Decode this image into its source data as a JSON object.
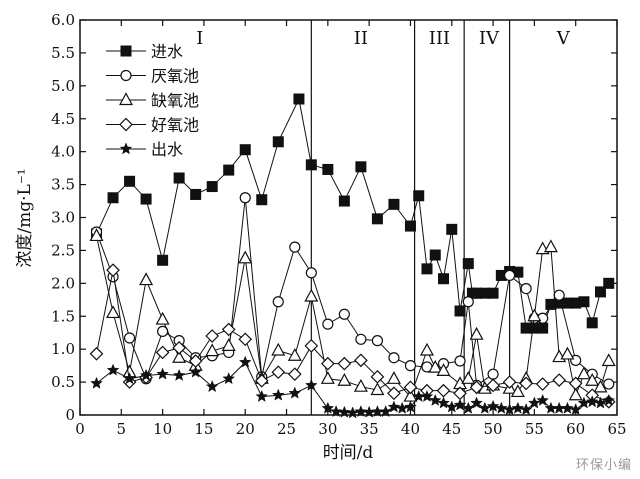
{
  "chart_data": {
    "type": "line",
    "xlabel": "时间/d",
    "ylabel": "浓度/mg·L⁻¹",
    "xlim": [
      0,
      65
    ],
    "ylim": [
      0,
      6.0
    ],
    "xticks": [
      0,
      5,
      10,
      15,
      20,
      25,
      30,
      35,
      40,
      45,
      50,
      55,
      60,
      65
    ],
    "yticks": [
      "0",
      "0.5",
      "1.0",
      "1.5",
      "2.0",
      "2.5",
      "3.0",
      "3.5",
      "4.0",
      "4.5",
      "5.0",
      "5.5",
      "6.0"
    ],
    "grid": false,
    "legend_position": "top-left",
    "phases": {
      "boundaries": [
        28,
        40.5,
        46.5,
        52
      ],
      "labels": [
        "I",
        "II",
        "III",
        "IV",
        "V"
      ],
      "label_x": [
        14.5,
        34,
        43.5,
        49.5,
        58.5
      ]
    },
    "series": [
      {
        "name": "进水",
        "marker": "square-filled",
        "x": [
          2,
          4,
          6,
          8,
          10,
          12,
          14,
          16,
          18,
          20,
          22,
          24,
          26.5,
          28,
          30,
          32,
          34,
          36,
          38,
          40,
          41,
          42,
          43,
          44,
          45,
          46,
          47,
          47.5,
          48,
          49,
          50,
          51,
          52,
          53,
          54,
          55,
          56,
          57,
          58,
          59,
          60,
          61,
          62,
          63,
          64
        ],
        "y": [
          2.75,
          3.3,
          3.55,
          3.28,
          2.35,
          3.6,
          3.35,
          3.47,
          3.72,
          4.03,
          3.27,
          4.15,
          4.8,
          3.8,
          3.73,
          3.25,
          3.77,
          2.98,
          3.2,
          2.87,
          3.33,
          2.22,
          2.43,
          2.07,
          2.82,
          1.58,
          2.3,
          1.85,
          1.85,
          1.85,
          1.85,
          2.12,
          2.18,
          2.17,
          1.32,
          1.32,
          1.32,
          1.68,
          1.7,
          1.7,
          1.7,
          1.72,
          1.4,
          1.87,
          2.0
        ]
      },
      {
        "name": "厌氧池",
        "marker": "circle-open",
        "x": [
          2,
          4,
          6,
          8,
          10,
          12,
          14,
          16,
          18,
          20,
          22,
          24,
          26,
          28,
          30,
          32,
          34,
          36,
          38,
          40,
          42,
          44,
          46,
          47,
          48,
          50,
          52,
          54,
          55,
          56,
          58,
          60,
          62,
          64
        ],
        "y": [
          2.78,
          2.1,
          1.17,
          0.55,
          1.27,
          1.13,
          0.87,
          0.9,
          0.95,
          3.3,
          0.58,
          1.72,
          2.55,
          2.16,
          1.38,
          1.53,
          1.15,
          1.13,
          0.87,
          0.75,
          0.73,
          0.78,
          0.82,
          1.72,
          0.45,
          0.62,
          2.12,
          1.92,
          1.47,
          1.47,
          1.82,
          0.83,
          0.62,
          0.47
        ]
      },
      {
        "name": "缺氧池",
        "marker": "triangle-open",
        "x": [
          2,
          4,
          6,
          8,
          10,
          12,
          14,
          16,
          18,
          20,
          22,
          24,
          26,
          28,
          30,
          32,
          34,
          36,
          38,
          40,
          42,
          43,
          44,
          46,
          47,
          48,
          49,
          50,
          52,
          53,
          54,
          55,
          56,
          57,
          58,
          59,
          60,
          61,
          62,
          63,
          64
        ],
        "y": [
          2.72,
          1.55,
          0.65,
          2.05,
          1.45,
          0.87,
          0.75,
          0.97,
          1.05,
          2.38,
          0.55,
          0.98,
          0.9,
          1.8,
          0.55,
          0.52,
          0.43,
          0.38,
          0.55,
          0.28,
          0.98,
          0.72,
          0.67,
          0.47,
          0.55,
          1.22,
          0.4,
          0.45,
          0.4,
          0.35,
          0.55,
          1.5,
          2.52,
          2.55,
          0.88,
          0.92,
          0.3,
          0.62,
          0.52,
          0.42,
          0.82
        ]
      },
      {
        "name": "好氧池",
        "marker": "diamond-open",
        "x": [
          2,
          4,
          6,
          8,
          10,
          12,
          14,
          16,
          18,
          20,
          22,
          24,
          26,
          28,
          30,
          32,
          34,
          36,
          38,
          40,
          42,
          44,
          46,
          48,
          50,
          52,
          54,
          56,
          58,
          60,
          62,
          64
        ],
        "y": [
          0.93,
          2.2,
          0.5,
          0.57,
          0.95,
          1.02,
          0.82,
          1.2,
          1.3,
          1.15,
          0.52,
          0.65,
          0.62,
          1.05,
          0.78,
          0.78,
          0.83,
          0.58,
          0.33,
          0.42,
          0.37,
          0.37,
          0.33,
          0.42,
          0.45,
          0.5,
          0.48,
          0.47,
          0.53,
          0.48,
          0.3,
          0.2
        ]
      },
      {
        "name": "出水",
        "marker": "star-filled",
        "x": [
          2,
          4,
          6,
          8,
          10,
          12,
          14,
          16,
          18,
          20,
          22,
          24,
          26,
          28,
          30,
          31,
          32,
          33,
          34,
          35,
          36,
          37,
          38,
          39,
          40,
          41,
          42,
          43,
          44,
          45,
          46,
          47,
          48,
          49,
          50,
          51,
          52,
          53,
          54,
          55,
          56,
          57,
          58,
          59,
          60,
          61,
          62,
          63,
          64
        ],
        "y": [
          0.48,
          0.68,
          0.55,
          0.6,
          0.62,
          0.6,
          0.65,
          0.43,
          0.55,
          0.8,
          0.28,
          0.3,
          0.33,
          0.45,
          0.1,
          0.05,
          0.04,
          0.03,
          0.05,
          0.04,
          0.05,
          0.05,
          0.12,
          0.1,
          0.12,
          0.28,
          0.28,
          0.22,
          0.18,
          0.12,
          0.15,
          0.1,
          0.18,
          0.1,
          0.13,
          0.1,
          0.08,
          0.1,
          0.08,
          0.18,
          0.22,
          0.1,
          0.1,
          0.1,
          0.08,
          0.18,
          0.2,
          0.18,
          0.22
        ]
      }
    ]
  },
  "watermark": "环保小编"
}
